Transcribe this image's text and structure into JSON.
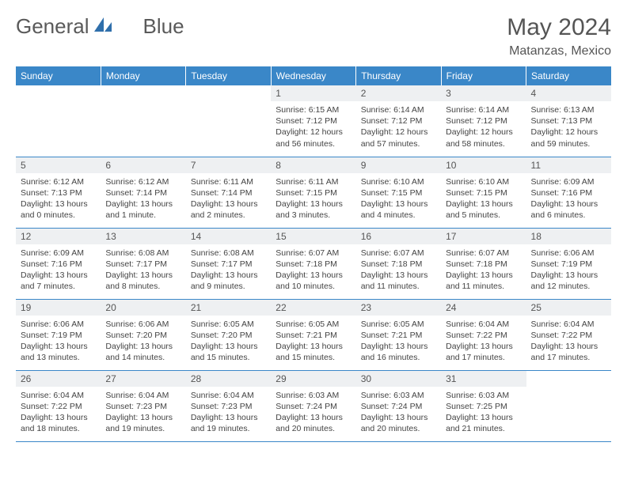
{
  "brand": {
    "text1": "General",
    "text2": "Blue",
    "logo_color": "#2f6fab"
  },
  "header": {
    "month": "May 2024",
    "location": "Matanzas, Mexico"
  },
  "colors": {
    "header_bg": "#3a87c8",
    "header_fg": "#ffffff",
    "daynum_bg": "#eef0f2",
    "border": "#3a87c8",
    "text": "#555555"
  },
  "weekdays": [
    "Sunday",
    "Monday",
    "Tuesday",
    "Wednesday",
    "Thursday",
    "Friday",
    "Saturday"
  ],
  "first_weekday_index": 3,
  "days": [
    {
      "n": 1,
      "sunrise": "6:15 AM",
      "sunset": "7:12 PM",
      "daylight": "12 hours and 56 minutes."
    },
    {
      "n": 2,
      "sunrise": "6:14 AM",
      "sunset": "7:12 PM",
      "daylight": "12 hours and 57 minutes."
    },
    {
      "n": 3,
      "sunrise": "6:14 AM",
      "sunset": "7:12 PM",
      "daylight": "12 hours and 58 minutes."
    },
    {
      "n": 4,
      "sunrise": "6:13 AM",
      "sunset": "7:13 PM",
      "daylight": "12 hours and 59 minutes."
    },
    {
      "n": 5,
      "sunrise": "6:12 AM",
      "sunset": "7:13 PM",
      "daylight": "13 hours and 0 minutes."
    },
    {
      "n": 6,
      "sunrise": "6:12 AM",
      "sunset": "7:14 PM",
      "daylight": "13 hours and 1 minute."
    },
    {
      "n": 7,
      "sunrise": "6:11 AM",
      "sunset": "7:14 PM",
      "daylight": "13 hours and 2 minutes."
    },
    {
      "n": 8,
      "sunrise": "6:11 AM",
      "sunset": "7:15 PM",
      "daylight": "13 hours and 3 minutes."
    },
    {
      "n": 9,
      "sunrise": "6:10 AM",
      "sunset": "7:15 PM",
      "daylight": "13 hours and 4 minutes."
    },
    {
      "n": 10,
      "sunrise": "6:10 AM",
      "sunset": "7:15 PM",
      "daylight": "13 hours and 5 minutes."
    },
    {
      "n": 11,
      "sunrise": "6:09 AM",
      "sunset": "7:16 PM",
      "daylight": "13 hours and 6 minutes."
    },
    {
      "n": 12,
      "sunrise": "6:09 AM",
      "sunset": "7:16 PM",
      "daylight": "13 hours and 7 minutes."
    },
    {
      "n": 13,
      "sunrise": "6:08 AM",
      "sunset": "7:17 PM",
      "daylight": "13 hours and 8 minutes."
    },
    {
      "n": 14,
      "sunrise": "6:08 AM",
      "sunset": "7:17 PM",
      "daylight": "13 hours and 9 minutes."
    },
    {
      "n": 15,
      "sunrise": "6:07 AM",
      "sunset": "7:18 PM",
      "daylight": "13 hours and 10 minutes."
    },
    {
      "n": 16,
      "sunrise": "6:07 AM",
      "sunset": "7:18 PM",
      "daylight": "13 hours and 11 minutes."
    },
    {
      "n": 17,
      "sunrise": "6:07 AM",
      "sunset": "7:18 PM",
      "daylight": "13 hours and 11 minutes."
    },
    {
      "n": 18,
      "sunrise": "6:06 AM",
      "sunset": "7:19 PM",
      "daylight": "13 hours and 12 minutes."
    },
    {
      "n": 19,
      "sunrise": "6:06 AM",
      "sunset": "7:19 PM",
      "daylight": "13 hours and 13 minutes."
    },
    {
      "n": 20,
      "sunrise": "6:06 AM",
      "sunset": "7:20 PM",
      "daylight": "13 hours and 14 minutes."
    },
    {
      "n": 21,
      "sunrise": "6:05 AM",
      "sunset": "7:20 PM",
      "daylight": "13 hours and 15 minutes."
    },
    {
      "n": 22,
      "sunrise": "6:05 AM",
      "sunset": "7:21 PM",
      "daylight": "13 hours and 15 minutes."
    },
    {
      "n": 23,
      "sunrise": "6:05 AM",
      "sunset": "7:21 PM",
      "daylight": "13 hours and 16 minutes."
    },
    {
      "n": 24,
      "sunrise": "6:04 AM",
      "sunset": "7:22 PM",
      "daylight": "13 hours and 17 minutes."
    },
    {
      "n": 25,
      "sunrise": "6:04 AM",
      "sunset": "7:22 PM",
      "daylight": "13 hours and 17 minutes."
    },
    {
      "n": 26,
      "sunrise": "6:04 AM",
      "sunset": "7:22 PM",
      "daylight": "13 hours and 18 minutes."
    },
    {
      "n": 27,
      "sunrise": "6:04 AM",
      "sunset": "7:23 PM",
      "daylight": "13 hours and 19 minutes."
    },
    {
      "n": 28,
      "sunrise": "6:04 AM",
      "sunset": "7:23 PM",
      "daylight": "13 hours and 19 minutes."
    },
    {
      "n": 29,
      "sunrise": "6:03 AM",
      "sunset": "7:24 PM",
      "daylight": "13 hours and 20 minutes."
    },
    {
      "n": 30,
      "sunrise": "6:03 AM",
      "sunset": "7:24 PM",
      "daylight": "13 hours and 20 minutes."
    },
    {
      "n": 31,
      "sunrise": "6:03 AM",
      "sunset": "7:25 PM",
      "daylight": "13 hours and 21 minutes."
    }
  ]
}
